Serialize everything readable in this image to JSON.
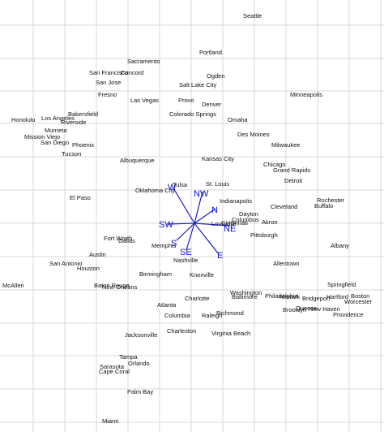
{
  "map": {
    "background": "#ffffff",
    "grid_color": "#d9d9d9",
    "ray_color": "#1a1acc",
    "cities": [
      {
        "id": "seattle",
        "name": "Seattle"
      },
      {
        "id": "portland",
        "name": "Portland"
      },
      {
        "id": "sacramento",
        "name": "Sacramento"
      },
      {
        "id": "san-francisco",
        "name": "San Francisco"
      },
      {
        "id": "concord",
        "name": "Concord"
      },
      {
        "id": "san-jose",
        "name": "San Jose"
      },
      {
        "id": "ogden",
        "name": "Ogden"
      },
      {
        "id": "salt-lake-city",
        "name": "Salt Lake City"
      },
      {
        "id": "fresno",
        "name": "Fresno"
      },
      {
        "id": "las-vegas",
        "name": "Las Vegas"
      },
      {
        "id": "provo",
        "name": "Provo"
      },
      {
        "id": "denver",
        "name": "Denver"
      },
      {
        "id": "minneapolis",
        "name": "Minneapolis"
      },
      {
        "id": "bakersfield",
        "name": "Bakersfield"
      },
      {
        "id": "colorado-springs",
        "name": "Colorado Springs"
      },
      {
        "id": "los-angeles",
        "name": "Los Angeles"
      },
      {
        "id": "honolulu",
        "name": "Honolulu"
      },
      {
        "id": "riverside",
        "name": "Riverside"
      },
      {
        "id": "omaha",
        "name": "Omaha"
      },
      {
        "id": "murrieta",
        "name": "Murrieta"
      },
      {
        "id": "mission-viejo",
        "name": "Mission Viejo"
      },
      {
        "id": "des-moines",
        "name": "Des Moines"
      },
      {
        "id": "san-diego",
        "name": "San Diego"
      },
      {
        "id": "phoenix",
        "name": "Phoenix"
      },
      {
        "id": "milwaukee",
        "name": "Milwaukee"
      },
      {
        "id": "tucson",
        "name": "Tucson"
      },
      {
        "id": "kansas-city",
        "name": "Kansas City"
      },
      {
        "id": "albuquerque",
        "name": "Albuquerque"
      },
      {
        "id": "chicago",
        "name": "Chicago"
      },
      {
        "id": "grand-rapids",
        "name": "Grand Rapids"
      },
      {
        "id": "detroit",
        "name": "Detroit"
      },
      {
        "id": "tulsa",
        "name": "Tulsa"
      },
      {
        "id": "st-louis",
        "name": "St. Louis"
      },
      {
        "id": "oklahoma-city",
        "name": "Oklahoma City"
      },
      {
        "id": "el-paso",
        "name": "El Paso"
      },
      {
        "id": "indianapolis",
        "name": "Indianapolis"
      },
      {
        "id": "rochester",
        "name": "Rochester"
      },
      {
        "id": "cleveland",
        "name": "Cleveland"
      },
      {
        "id": "buffalo",
        "name": "Buffalo"
      },
      {
        "id": "dayton",
        "name": "Dayton"
      },
      {
        "id": "columbus",
        "name": "Columbus"
      },
      {
        "id": "louisville",
        "name": "Louisville"
      },
      {
        "id": "cincinnati",
        "name": "Cincinnati"
      },
      {
        "id": "akron",
        "name": "Akron"
      },
      {
        "id": "pittsburgh",
        "name": "Pittsburgh"
      },
      {
        "id": "fort-worth",
        "name": "Fort Worth"
      },
      {
        "id": "dallas",
        "name": "Dallas"
      },
      {
        "id": "memphis",
        "name": "Memphis"
      },
      {
        "id": "albany",
        "name": "Albany"
      },
      {
        "id": "austin",
        "name": "Austin"
      },
      {
        "id": "nashville",
        "name": "Nashville"
      },
      {
        "id": "san-antonio",
        "name": "San Antonio"
      },
      {
        "id": "houston",
        "name": "Houston"
      },
      {
        "id": "allentown",
        "name": "Allentown"
      },
      {
        "id": "birmingham",
        "name": "Birmingham"
      },
      {
        "id": "knoxville",
        "name": "Knoxville"
      },
      {
        "id": "springfield",
        "name": "Springfield"
      },
      {
        "id": "mcallen",
        "name": "McAllen"
      },
      {
        "id": "baton-rouge",
        "name": "Baton Rouge"
      },
      {
        "id": "new-orleans",
        "name": "New Orleans"
      },
      {
        "id": "washington",
        "name": "Washington"
      },
      {
        "id": "baltimore",
        "name": "Baltimore"
      },
      {
        "id": "philadelphia",
        "name": "Philadelphia"
      },
      {
        "id": "boston",
        "name": "Boston"
      },
      {
        "id": "hartford",
        "name": "Hartford"
      },
      {
        "id": "charlotte",
        "name": "Charlotte"
      },
      {
        "id": "newark",
        "name": "Newark"
      },
      {
        "id": "bridgeport",
        "name": "Bridgeport"
      },
      {
        "id": "worcester",
        "name": "Worcester"
      },
      {
        "id": "atlanta",
        "name": "Atlanta"
      },
      {
        "id": "brooklyn",
        "name": "Brooklyn"
      },
      {
        "id": "queens",
        "name": "Queens"
      },
      {
        "id": "new-haven",
        "name": "New Haven"
      },
      {
        "id": "richmond",
        "name": "Richmond"
      },
      {
        "id": "columbia",
        "name": "Columbia"
      },
      {
        "id": "raleigh",
        "name": "Raleigh"
      },
      {
        "id": "providence",
        "name": "Providence"
      },
      {
        "id": "charleston",
        "name": "Charleston"
      },
      {
        "id": "jacksonville",
        "name": "Jacksonville"
      },
      {
        "id": "virginia-beach",
        "name": "Virginia Beach"
      },
      {
        "id": "tampa",
        "name": "Tampa"
      },
      {
        "id": "orlando",
        "name": "Orlando"
      },
      {
        "id": "sarasota",
        "name": "Sarasota"
      },
      {
        "id": "cape-coral",
        "name": "Cape Coral"
      },
      {
        "id": "palm-bay",
        "name": "Palm Bay"
      },
      {
        "id": "miami",
        "name": "Miami"
      }
    ],
    "directions": [
      {
        "id": "w",
        "label": "W"
      },
      {
        "id": "nw",
        "label": "NW"
      },
      {
        "id": "n",
        "label": "N"
      },
      {
        "id": "ne",
        "label": "NE"
      },
      {
        "id": "e",
        "label": "E"
      },
      {
        "id": "se",
        "label": "SE"
      },
      {
        "id": "s",
        "label": "S"
      },
      {
        "id": "sw",
        "label": "SW"
      }
    ]
  }
}
